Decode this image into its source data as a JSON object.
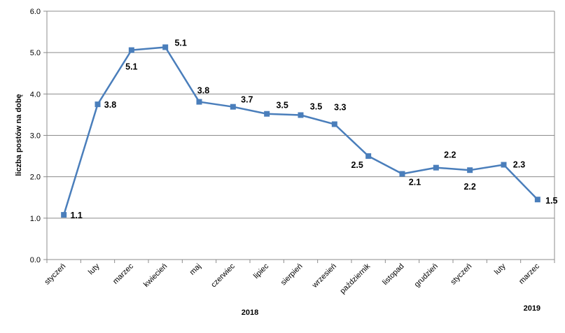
{
  "chart_data": {
    "type": "line",
    "title": "",
    "ylabel": "liczba postów na dobę",
    "xlabel": "",
    "ylim": [
      0,
      6
    ],
    "yticks": [
      "0.0",
      "1.0",
      "2.0",
      "3.0",
      "4.0",
      "5.0",
      "6.0"
    ],
    "grid": true,
    "legend": "none",
    "line_color": "#4A7EBB",
    "categories": [
      "styczeń",
      "luty",
      "marzec",
      "kwiecień",
      "maj",
      "czerwiec",
      "lipiec",
      "sierpień",
      "wrzesień",
      "październik",
      "listopad",
      "grudzień",
      "styczeń",
      "luty",
      "marzec"
    ],
    "values": [
      1.08,
      3.75,
      5.06,
      5.13,
      3.81,
      3.69,
      3.52,
      3.49,
      3.27,
      2.5,
      2.07,
      2.22,
      2.16,
      2.29,
      1.45
    ],
    "data_labels": [
      "1.1",
      "3.8",
      "5.1",
      "5.1",
      "3.8",
      "3.7",
      "3.5",
      "3.5",
      "3.3",
      "2.5",
      "2.1",
      "2.2",
      "2.2",
      "2.3",
      "1.5"
    ],
    "year_groups": [
      {
        "label": "2018",
        "from": 0,
        "to": 11
      },
      {
        "label": "2019",
        "from": 12,
        "to": 14
      }
    ]
  }
}
